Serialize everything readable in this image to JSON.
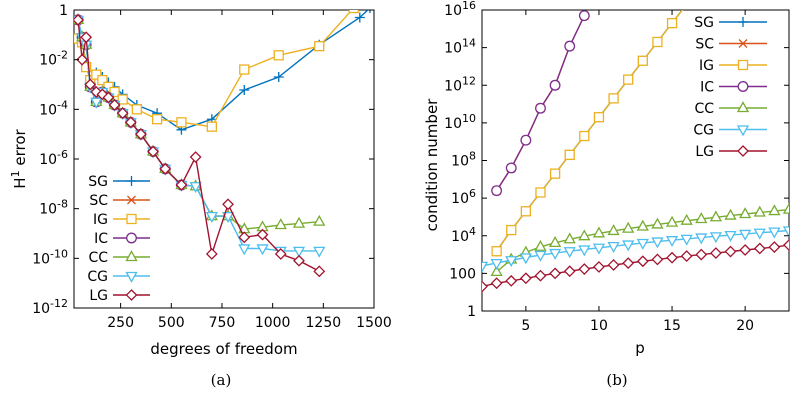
{
  "captions": [
    "(a)",
    "(b)"
  ],
  "chart_data": [
    {
      "type": "line",
      "xlabel": "degrees of freedom",
      "ylabel": "H¹ error",
      "ylabel_main": "H",
      "ylabel_sup": "1",
      "ylabel_rest": " error",
      "xlim": [
        20,
        1500
      ],
      "ylim": [
        1e-12,
        1
      ],
      "yscale": "log",
      "grid": false,
      "legend_position": "bottom-left",
      "xticks": [
        250,
        500,
        750,
        1000,
        1250,
        1500
      ],
      "xtick_labels": [
        "250",
        "500",
        "750",
        "1000",
        "1250",
        "1500"
      ],
      "yticks": [
        1e-12,
        1e-10,
        1e-08,
        1e-06,
        0.0001,
        0.01,
        1
      ],
      "ytick_labels": [
        {
          "base": "10",
          "exp": "-12"
        },
        {
          "base": "10",
          "exp": "-10"
        },
        {
          "base": "10",
          "exp": "-8"
        },
        {
          "base": "10",
          "exp": "-6"
        },
        {
          "base": "10",
          "exp": "-4"
        },
        {
          "base": "10",
          "exp": "-2"
        },
        {
          "base": "1",
          "exp": ""
        }
      ],
      "series": [
        {
          "name": "SG",
          "color": "#0072bd",
          "marker": "plus",
          "x": [
            40,
            60,
            80,
            100,
            130,
            160,
            190,
            220,
            260,
            330,
            430,
            550,
            700,
            860,
            1030,
            1230,
            1430,
            1480
          ],
          "y": [
            0.4,
            0.05,
            0.007,
            0.0015,
            0.003,
            0.002,
            0.0012,
            0.0008,
            0.0004,
            0.00015,
            7e-05,
            1.5e-05,
            4e-05,
            0.0006,
            0.002,
            0.04,
            0.5,
            1.2
          ]
        },
        {
          "name": "SC",
          "color": "#d95319",
          "marker": "x",
          "x": [
            40,
            60,
            80,
            100,
            130,
            160,
            190,
            220,
            260,
            300,
            350,
            410,
            470,
            550,
            620,
            700,
            780
          ],
          "y": [
            0.4,
            0.08,
            0.04,
            0.0008,
            0.0002,
            0.0005,
            0.0003,
            0.00015,
            7e-05,
            3e-05,
            1e-05,
            2e-06,
            4e-07,
            9e-08,
            8e-08,
            5e-09,
            5e-09
          ]
        },
        {
          "name": "IG",
          "color": "#edb120",
          "marker": "square",
          "x": [
            40,
            60,
            80,
            100,
            130,
            160,
            190,
            220,
            260,
            330,
            430,
            550,
            700,
            860,
            1030,
            1230,
            1400
          ],
          "y": [
            0.07,
            0.05,
            0.005,
            0.0015,
            0.0025,
            0.0015,
            0.0008,
            0.0005,
            0.00025,
            0.0001,
            4e-05,
            3e-05,
            2e-05,
            0.004,
            0.015,
            0.035,
            1.2
          ]
        },
        {
          "name": "IC",
          "color": "#7e2f8e",
          "marker": "circle",
          "x": [
            40,
            60,
            80,
            100,
            130,
            160,
            190,
            220,
            260,
            300,
            350,
            410,
            470,
            550
          ],
          "y": [
            0.4,
            0.08,
            0.04,
            0.0008,
            0.0002,
            0.0005,
            0.0003,
            0.00015,
            7e-05,
            3e-05,
            1e-05,
            2e-06,
            4e-07,
            9e-08
          ]
        },
        {
          "name": "CC",
          "color": "#77ac30",
          "marker": "triangle-up",
          "x": [
            40,
            60,
            80,
            100,
            130,
            160,
            190,
            220,
            260,
            300,
            350,
            410,
            470,
            550,
            620,
            700,
            780,
            860,
            950,
            1040,
            1130,
            1230
          ],
          "y": [
            0.4,
            0.08,
            0.04,
            0.0008,
            0.0002,
            0.0005,
            0.0003,
            0.00015,
            7e-05,
            3e-05,
            1e-05,
            2e-06,
            4e-07,
            9e-08,
            8e-08,
            5e-09,
            5e-09,
            1.5e-09,
            1.8e-09,
            2.2e-09,
            2.5e-09,
            3e-09
          ]
        },
        {
          "name": "CG",
          "color": "#4dbeee",
          "marker": "triangle-down",
          "x": [
            40,
            60,
            80,
            100,
            130,
            160,
            190,
            220,
            260,
            300,
            350,
            410,
            470,
            550,
            620,
            700,
            780,
            860,
            950,
            1040,
            1130,
            1230
          ],
          "y": [
            0.4,
            0.08,
            0.04,
            0.0008,
            0.0002,
            0.0005,
            0.0003,
            0.00015,
            7e-05,
            3e-05,
            1e-05,
            2e-06,
            4e-07,
            9e-08,
            8e-08,
            5e-09,
            5e-09,
            2.5e-10,
            2.5e-10,
            2e-10,
            2e-10,
            2e-10
          ]
        },
        {
          "name": "LG",
          "color": "#a2142f",
          "marker": "diamond",
          "x": [
            40,
            60,
            80,
            100,
            130,
            160,
            190,
            220,
            260,
            300,
            350,
            410,
            470,
            550,
            620,
            700,
            780,
            860,
            950,
            1040,
            1130,
            1230
          ],
          "y": [
            0.4,
            0.01,
            0.08,
            0.001,
            0.0005,
            0.0004,
            0.0003,
            0.00015,
            7e-05,
            3e-05,
            1e-05,
            2e-06,
            4e-07,
            9e-08,
            1.2e-06,
            1.5e-10,
            1.5e-08,
            7e-10,
            9e-10,
            1.5e-10,
            8e-11,
            3e-11
          ]
        }
      ]
    },
    {
      "type": "line",
      "xlabel": "p",
      "ylabel": "condition number",
      "xlim": [
        2,
        23
      ],
      "ylim": [
        1,
        1e+16
      ],
      "yscale": "log",
      "grid": false,
      "legend_position": "top-right",
      "xticks": [
        5,
        10,
        15,
        20
      ],
      "xtick_labels": [
        "5",
        "10",
        "15",
        "20"
      ],
      "yticks": [
        1,
        100,
        10000.0,
        1000000.0,
        100000000.0,
        10000000000.0,
        1000000000000.0,
        100000000000000.0,
        1e+16
      ],
      "ytick_labels": [
        {
          "base": "1",
          "exp": ""
        },
        {
          "base": "100",
          "exp": ""
        },
        {
          "base": "10",
          "exp": "4"
        },
        {
          "base": "10",
          "exp": "6"
        },
        {
          "base": "10",
          "exp": "8"
        },
        {
          "base": "10",
          "exp": "10"
        },
        {
          "base": "10",
          "exp": "12"
        },
        {
          "base": "10",
          "exp": "14"
        },
        {
          "base": "10",
          "exp": "16"
        }
      ],
      "series": [
        {
          "name": "SG",
          "color": "#0072bd",
          "marker": "plus",
          "x": [
            3,
            4,
            5,
            6,
            7,
            8,
            9,
            10,
            11,
            12,
            13,
            14,
            15,
            16
          ],
          "y": [
            1500.0,
            20000.0,
            200000.0,
            2000000.0,
            20000000.0,
            200000000.0,
            2000000000.0,
            20000000000.0,
            200000000000.0,
            2000000000000.0,
            20000000000000.0,
            200000000000000.0,
            2000000000000000.0,
            2e+16
          ]
        },
        {
          "name": "SC",
          "color": "#d95319",
          "marker": "x",
          "x": [
            3,
            4,
            5,
            6,
            7,
            8,
            9
          ],
          "y": [
            2500000.0,
            40000000.0,
            1200000000.0,
            60000000000.0,
            1000000000000.0,
            120000000000000.0,
            5000000000000000.0
          ]
        },
        {
          "name": "IG",
          "color": "#edb120",
          "marker": "square",
          "x": [
            3,
            4,
            5,
            6,
            7,
            8,
            9,
            10,
            11,
            12,
            13,
            14,
            15,
            16
          ],
          "y": [
            1500.0,
            20000.0,
            200000.0,
            2000000.0,
            20000000.0,
            200000000.0,
            2000000000.0,
            20000000000.0,
            200000000000.0,
            2000000000000.0,
            20000000000000.0,
            200000000000000.0,
            2000000000000000.0,
            2e+16
          ]
        },
        {
          "name": "IC",
          "color": "#7e2f8e",
          "marker": "circle",
          "x": [
            3,
            4,
            5,
            6,
            7,
            8,
            9
          ],
          "y": [
            2500000.0,
            40000000.0,
            1200000000.0,
            60000000000.0,
            1000000000000.0,
            120000000000000.0,
            5000000000000000.0
          ]
        },
        {
          "name": "CC",
          "color": "#77ac30",
          "marker": "triangle-up",
          "x": [
            3,
            4,
            5,
            6,
            7,
            8,
            9,
            10,
            11,
            12,
            13,
            14,
            15,
            16,
            17,
            18,
            19,
            20,
            21,
            22,
            23
          ],
          "y": [
            120,
            550,
            1300,
            2600,
            4200,
            6500,
            9500,
            13500,
            18000,
            24000,
            31000,
            40000,
            50000,
            63000,
            78000,
            96000,
            118000,
            143000,
            172000,
            205000,
            245000
          ]
        },
        {
          "name": "CG",
          "color": "#4dbeee",
          "marker": "triangle-down",
          "x": [
            2,
            3,
            4,
            5,
            6,
            7,
            8,
            9,
            10,
            11,
            12,
            13,
            14,
            15,
            16,
            17,
            18,
            19,
            20,
            21,
            22,
            23
          ],
          "y": [
            250,
            350,
            500,
            700,
            950,
            1200,
            1500,
            1850,
            2300,
            2800,
            3400,
            4100,
            4900,
            5800,
            6800,
            8000,
            9300,
            10800,
            12500,
            14400,
            16500,
            19000
          ]
        },
        {
          "name": "LG",
          "color": "#a2142f",
          "marker": "diamond",
          "x": [
            2,
            3,
            4,
            5,
            6,
            7,
            8,
            9,
            10,
            11,
            12,
            13,
            14,
            15,
            16,
            17,
            18,
            19,
            20,
            21,
            22,
            23
          ],
          "y": [
            20,
            30,
            40,
            55,
            75,
            100,
            130,
            170,
            220,
            280,
            350,
            440,
            550,
            680,
            830,
            1000,
            1200,
            1450,
            1750,
            2100,
            2500,
            3200
          ]
        }
      ]
    }
  ]
}
